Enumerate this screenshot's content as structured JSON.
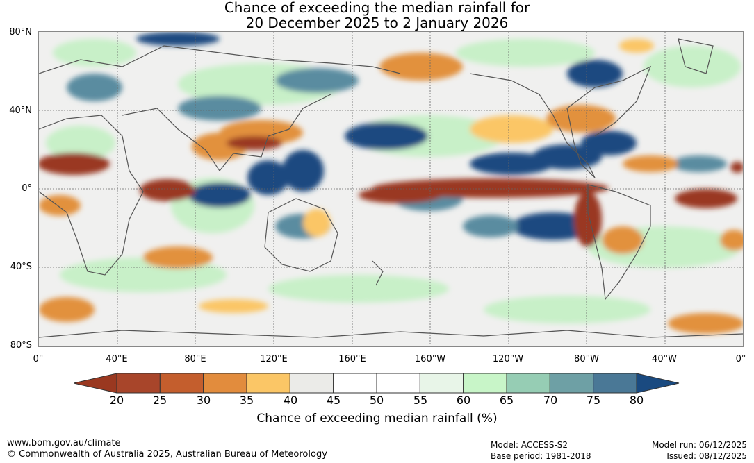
{
  "title": {
    "line1": "Chance of exceeding the median rainfall for",
    "line2": "20 December 2025 to 2 January 2026"
  },
  "map": {
    "lat_labels": [
      "80°N",
      "40°N",
      "0°",
      "40°S",
      "80°S"
    ],
    "lon_labels": [
      "0°",
      "40°E",
      "80°E",
      "120°E",
      "160°E",
      "160°W",
      "120°W",
      "80°W",
      "40°W",
      "0°"
    ]
  },
  "colorbar": {
    "ticks": [
      "20",
      "25",
      "30",
      "35",
      "40",
      "45",
      "50",
      "55",
      "60",
      "65",
      "70",
      "75",
      "80"
    ],
    "colors": [
      "#a8452a",
      "#c45e2d",
      "#e28c3d",
      "#fbc666",
      "#ebebe8",
      "#ffffff",
      "#ffffff",
      "#e8f5e8",
      "#c8f5c8",
      "#96cdb4",
      "#6ea0a5",
      "#4a7896"
    ],
    "low_extend_color": "#9a3820",
    "high_extend_color": "#1a4a80",
    "title": "Chance of exceeding median rainfall (%)"
  },
  "footer": {
    "url": "www.bom.gov.au/climate",
    "copyright": "© Commonwealth of Australia 2025, Australian Bureau of Meteorology",
    "model": "Model: ACCESS-S2",
    "base_period": "Base period: 1981-2018",
    "model_run": "Model run: 06/12/2025",
    "issued": "Issued: 08/12/2025"
  }
}
